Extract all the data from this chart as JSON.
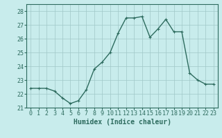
{
  "x": [
    0,
    1,
    2,
    3,
    4,
    5,
    6,
    7,
    8,
    9,
    10,
    11,
    12,
    13,
    14,
    15,
    16,
    17,
    18,
    19,
    20,
    21,
    22,
    23
  ],
  "y": [
    22.4,
    22.4,
    22.4,
    22.2,
    21.7,
    21.3,
    21.5,
    22.3,
    23.8,
    24.3,
    25.0,
    26.4,
    27.5,
    27.5,
    27.6,
    26.1,
    26.7,
    27.4,
    26.5,
    26.5,
    23.5,
    23.0,
    22.7,
    22.7
  ],
  "line_color": "#2d6b5e",
  "marker": "+",
  "marker_size": 3,
  "linewidth": 1.0,
  "xlabel": "Humidex (Indice chaleur)",
  "ylim": [
    21.0,
    28.5
  ],
  "xlim": [
    -0.5,
    23.5
  ],
  "yticks": [
    21,
    22,
    23,
    24,
    25,
    26,
    27,
    28
  ],
  "xticks": [
    0,
    1,
    2,
    3,
    4,
    5,
    6,
    7,
    8,
    9,
    10,
    11,
    12,
    13,
    14,
    15,
    16,
    17,
    18,
    19,
    20,
    21,
    22,
    23
  ],
  "bg_color": "#c8ecec",
  "grid_color": "#a0c8c8",
  "tick_label_size": 6,
  "xlabel_size": 7,
  "spine_color": "#2d6b5e"
}
